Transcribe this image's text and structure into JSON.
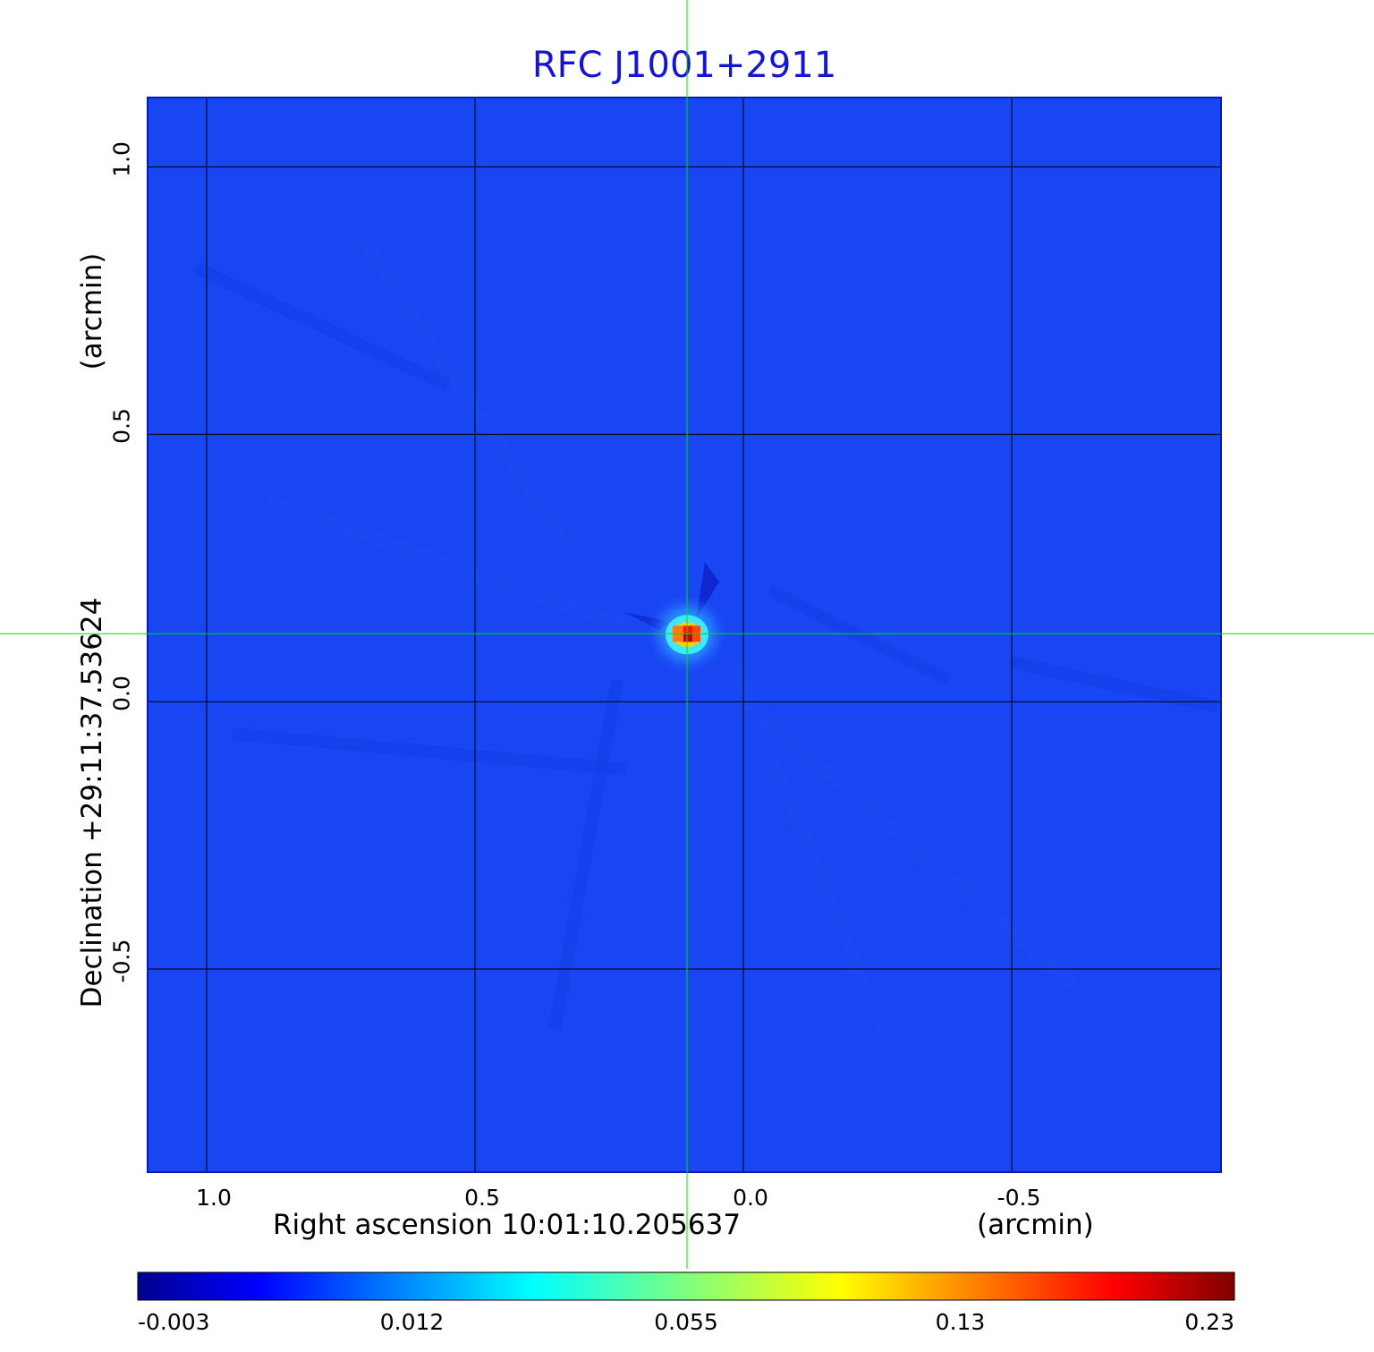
{
  "title": "RFC J1001+2911",
  "chart_data": {
    "type": "heatmap",
    "title": "RFC J1001+2911",
    "xlabel": "Right ascension  10:01:10.205637",
    "xunit": "(arcmin)",
    "ylabel": "Declination  +29:11:37.53624",
    "yunit": "(arcmin)",
    "x_ticks": [
      "1.0",
      "0.5",
      "0.0",
      "-0.5"
    ],
    "y_ticks": [
      "1.0",
      "0.5",
      "0.0",
      "-0.5"
    ],
    "x_tick_values": [
      1.0,
      0.5,
      0.0,
      -0.5
    ],
    "y_tick_values": [
      1.0,
      0.5,
      0.0,
      -0.5
    ],
    "xlim": [
      1.11,
      -0.89
    ],
    "ylim": [
      -0.88,
      1.13
    ],
    "grid": true,
    "crosshair": {
      "x": 0.105,
      "y": 0.127,
      "color": "#00e000"
    },
    "source_peak": {
      "x": 0.105,
      "y": 0.127,
      "value": 0.23
    },
    "background_value": 0.003,
    "colormap": "jet",
    "colorbar": {
      "tick_labels": [
        "-0.003",
        "0.012",
        "0.055",
        "0.13",
        "0.23"
      ],
      "min": -0.003,
      "max": 0.23
    }
  }
}
